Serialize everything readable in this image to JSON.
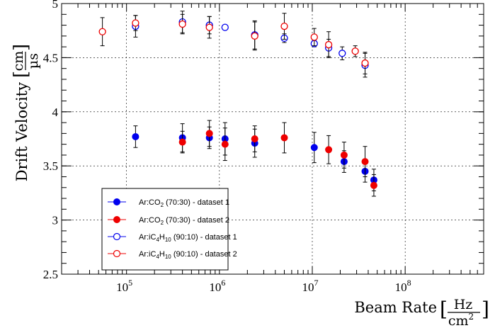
{
  "chart_data": {
    "type": "scatter",
    "title": "",
    "xlabel": {
      "main": "Beam Rate",
      "unit_num": "Hz",
      "unit_den": "cm",
      "unit_den_sup": "2"
    },
    "ylabel": {
      "main": "Drift Velocity",
      "unit_num": "cm",
      "unit_den": "µs"
    },
    "xscale": "log",
    "xlim": [
      20000,
      700000000
    ],
    "ylim": [
      2.5,
      5.0
    ],
    "grid": true,
    "legend_position": "lower-left",
    "x_ticks": [
      {
        "value": 100000,
        "base": "10",
        "exp": "5"
      },
      {
        "value": 1000000,
        "base": "10",
        "exp": "6"
      },
      {
        "value": 10000000,
        "base": "10",
        "exp": "7"
      },
      {
        "value": 100000000,
        "base": "10",
        "exp": "8"
      }
    ],
    "y_ticks": [
      {
        "value": 2.5,
        "label": "2.5"
      },
      {
        "value": 3.0,
        "label": "3"
      },
      {
        "value": 3.5,
        "label": "3.5"
      },
      {
        "value": 4.0,
        "label": "4"
      },
      {
        "value": 4.5,
        "label": "4.5"
      },
      {
        "value": 5.0,
        "label": "5"
      }
    ],
    "series": [
      {
        "name": "Ar:CO2 (70:30) - dataset 1",
        "label_parts": {
          "a": "Ar:CO",
          "sub": "2",
          "b": " (70:30) - dataset 1"
        },
        "color": "#0000ee",
        "marker": "filled",
        "points": [
          {
            "x": 125000,
            "y": 3.77,
            "err": 0.1
          },
          {
            "x": 400000,
            "y": 3.76,
            "err": 0.13
          },
          {
            "x": 780000,
            "y": 3.76,
            "err": 0.1
          },
          {
            "x": 1150000,
            "y": 3.75,
            "err": 0.15
          },
          {
            "x": 2400000,
            "y": 3.71,
            "err": 0.13
          },
          {
            "x": 10500000,
            "y": 3.67,
            "err": 0.14
          },
          {
            "x": 22000000,
            "y": 3.54,
            "err": 0.1
          },
          {
            "x": 37000000,
            "y": 3.45,
            "err": 0.1
          },
          {
            "x": 46000000,
            "y": 3.37,
            "err": 0.1
          }
        ]
      },
      {
        "name": "Ar:CO2 (70:30) - dataset 2",
        "label_parts": {
          "a": "Ar:CO",
          "sub": "2",
          "b": " (70:30) - dataset 2"
        },
        "color": "#ee0000",
        "marker": "filled",
        "points": [
          {
            "x": 400000,
            "y": 3.72,
            "err": 0.1
          },
          {
            "x": 780000,
            "y": 3.8,
            "err": 0.12
          },
          {
            "x": 1150000,
            "y": 3.7,
            "err": 0.15
          },
          {
            "x": 2400000,
            "y": 3.75,
            "err": 0.12
          },
          {
            "x": 5000000,
            "y": 3.76,
            "err": 0.14
          },
          {
            "x": 15000000,
            "y": 3.65,
            "err": 0.13
          },
          {
            "x": 22000000,
            "y": 3.6,
            "err": 0.12
          },
          {
            "x": 37000000,
            "y": 3.54,
            "err": 0.14
          },
          {
            "x": 46000000,
            "y": 3.32,
            "err": 0.1
          }
        ]
      },
      {
        "name": "Ar:iC4H10 (90:10) - dataset 1",
        "label_parts": {
          "a": "Ar:iC",
          "sub": "4",
          "b": "H",
          "sub2": "10",
          "c": " (90:10) - dataset 1"
        },
        "color": "#0000ee",
        "marker": "open",
        "points": [
          {
            "x": 125000,
            "y": 4.79,
            "err": 0.1
          },
          {
            "x": 400000,
            "y": 4.83,
            "err": 0.1
          },
          {
            "x": 780000,
            "y": 4.8,
            "err": 0.08
          },
          {
            "x": 1150000,
            "y": 4.78,
            "err": 0.0
          },
          {
            "x": 2400000,
            "y": 4.71,
            "err": 0.13
          },
          {
            "x": 5000000,
            "y": 4.68,
            "err": 0.04
          },
          {
            "x": 10500000,
            "y": 4.63,
            "err": 0.03
          },
          {
            "x": 15000000,
            "y": 4.59,
            "err": 0.08
          },
          {
            "x": 21000000,
            "y": 4.54,
            "err": 0.06
          },
          {
            "x": 37000000,
            "y": 4.43,
            "err": 0.11
          }
        ]
      },
      {
        "name": "Ar:iC4H10 (90:10) - dataset 2",
        "label_parts": {
          "a": "Ar:iC",
          "sub": "4",
          "b": "H",
          "sub2": "10",
          "c": " (90:10) - dataset 2"
        },
        "color": "#ee0000",
        "marker": "open",
        "points": [
          {
            "x": 55000,
            "y": 4.74,
            "err": 0.13
          },
          {
            "x": 125000,
            "y": 4.82,
            "err": 0.07
          },
          {
            "x": 400000,
            "y": 4.81,
            "err": 0.09
          },
          {
            "x": 780000,
            "y": 4.78,
            "err": 0.1
          },
          {
            "x": 2400000,
            "y": 4.7,
            "err": 0.13
          },
          {
            "x": 5000000,
            "y": 4.79,
            "err": 0.12
          },
          {
            "x": 10500000,
            "y": 4.69,
            "err": 0.08
          },
          {
            "x": 15000000,
            "y": 4.62,
            "err": 0.12
          },
          {
            "x": 29000000,
            "y": 4.56,
            "err": 0.05
          },
          {
            "x": 37000000,
            "y": 4.45,
            "err": 0.1
          }
        ]
      }
    ]
  }
}
